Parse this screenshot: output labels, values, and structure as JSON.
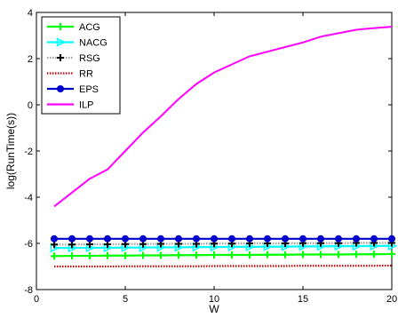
{
  "chart_data": {
    "type": "line",
    "xlabel": "W",
    "ylabel": "log(RunTime(s))",
    "xlim": [
      0,
      20
    ],
    "ylim": [
      -8,
      4
    ],
    "xticks": [
      0,
      5,
      10,
      15,
      20
    ],
    "yticks": [
      -8,
      -6,
      -4,
      -2,
      0,
      2,
      4
    ],
    "grid": false,
    "legend_position": "top-left",
    "x": [
      1,
      2,
      3,
      4,
      5,
      6,
      7,
      8,
      9,
      10,
      11,
      12,
      13,
      14,
      15,
      16,
      17,
      18,
      19,
      20
    ],
    "series": [
      {
        "name": "ACG",
        "color": "#00ff00",
        "marker": "plus",
        "line_style": "solid",
        "values": [
          -6.55,
          -6.54,
          -6.54,
          -6.53,
          -6.53,
          -6.52,
          -6.52,
          -6.51,
          -6.51,
          -6.5,
          -6.5,
          -6.5,
          -6.49,
          -6.49,
          -6.48,
          -6.48,
          -6.48,
          -6.47,
          -6.47,
          -6.46
        ]
      },
      {
        "name": "NACG",
        "color": "#00ffff",
        "marker": "triangle-right",
        "line_style": "solid",
        "values": [
          -6.2,
          -6.2,
          -6.19,
          -6.19,
          -6.18,
          -6.18,
          -6.17,
          -6.17,
          -6.16,
          -6.16,
          -6.15,
          -6.15,
          -6.14,
          -6.14,
          -6.13,
          -6.13,
          -6.12,
          -6.12,
          -6.11,
          -6.11
        ]
      },
      {
        "name": "RSG",
        "color": "#000000",
        "marker": "plus",
        "line_style": "dotted",
        "line_color": "#a0a0a0",
        "values": [
          -6.05,
          -6.05,
          -6.04,
          -6.04,
          -6.03,
          -6.03,
          -6.02,
          -6.02,
          -6.02,
          -6.01,
          -6.01,
          -6.0,
          -6.0,
          -6.0,
          -5.99,
          -5.99,
          -5.99,
          -5.98,
          -5.98,
          -5.98
        ]
      },
      {
        "name": "RR",
        "color": "#cc0000",
        "marker": "none",
        "line_style": "dotted",
        "values": [
          -7.0,
          -7.0,
          -7.0,
          -7.0,
          -6.99,
          -6.99,
          -6.99,
          -6.99,
          -6.99,
          -6.98,
          -6.98,
          -6.98,
          -6.98,
          -6.98,
          -6.97,
          -6.97,
          -6.97,
          -6.97,
          -6.97,
          -6.96
        ]
      },
      {
        "name": "EPS",
        "color": "#0000cc",
        "marker": "circle",
        "line_style": "solid",
        "values": [
          -5.8,
          -5.8,
          -5.8,
          -5.8,
          -5.8,
          -5.8,
          -5.8,
          -5.8,
          -5.8,
          -5.8,
          -5.8,
          -5.8,
          -5.8,
          -5.8,
          -5.8,
          -5.8,
          -5.8,
          -5.8,
          -5.8,
          -5.8
        ]
      },
      {
        "name": "ILP",
        "color": "#ff00ff",
        "marker": "none",
        "line_style": "solid",
        "values": [
          -4.4,
          -3.8,
          -3.2,
          -2.8,
          -2.0,
          -1.2,
          -0.5,
          0.25,
          0.9,
          1.4,
          1.75,
          2.1,
          2.3,
          2.5,
          2.7,
          2.95,
          3.1,
          3.25,
          3.32,
          3.38
        ]
      }
    ]
  }
}
